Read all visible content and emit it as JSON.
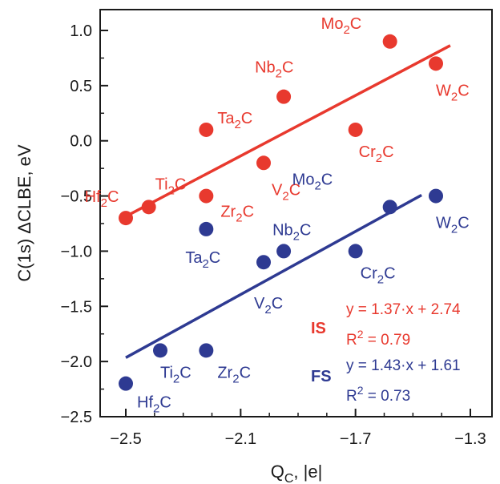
{
  "chart_data": {
    "type": "scatter",
    "xlabel": "Q",
    "xlabel_sub": "C",
    "xlabel_unit": ", |e|",
    "ylabel": "C(1s) ΔCLBE, eV",
    "xlim": [
      -2.6,
      -1.25
    ],
    "ylim": [
      -2.5,
      1.25
    ],
    "x_ticks": [
      -2.5,
      -2.1,
      -1.7,
      -1.3
    ],
    "x_tick_labels": [
      "−2.5",
      "−2.1",
      "−1.7",
      "−1.3"
    ],
    "y_ticks": [
      -2.5,
      -2.0,
      -1.5,
      -1.0,
      -0.5,
      0.0,
      0.5,
      1.0
    ],
    "y_tick_labels": [
      "−2.5",
      "−2.0",
      "−1.5",
      "−1.0",
      "−0.5",
      "0.0",
      "0.5",
      "1.0"
    ],
    "grid": false,
    "series": [
      {
        "name": "IS",
        "color": "#e8392e",
        "points": [
          {
            "label": "Hf",
            "sub": "2",
            "tail": "C",
            "x": -2.5,
            "y": -0.7
          },
          {
            "label": "Ti",
            "sub": "2",
            "tail": "C",
            "x": -2.42,
            "y": -0.6
          },
          {
            "label": "Zr",
            "sub": "2",
            "tail": "C",
            "x": -2.22,
            "y": -0.5
          },
          {
            "label": "Ta",
            "sub": "2",
            "tail": "C",
            "x": -2.22,
            "y": 0.1
          },
          {
            "label": "V",
            "sub": "2",
            "tail": "C",
            "x": -2.02,
            "y": -0.2
          },
          {
            "label": "Nb",
            "sub": "2",
            "tail": "C",
            "x": -1.95,
            "y": 0.4
          },
          {
            "label": "Cr",
            "sub": "2",
            "tail": "C",
            "x": -1.7,
            "y": 0.1
          },
          {
            "label": "Mo",
            "sub": "2",
            "tail": "C",
            "x": -1.58,
            "y": 0.9
          },
          {
            "label": "W",
            "sub": "2",
            "tail": "C",
            "x": -1.42,
            "y": 0.7
          }
        ],
        "fit": {
          "slope": 1.37,
          "intercept": 2.74,
          "r2": 0.79,
          "x_range": [
            -2.5,
            -1.37
          ]
        },
        "equation": "y = 1.37·x + 2.74",
        "r2_text": "R",
        "r2_sup": "2",
        "r2_value": " = 0.79"
      },
      {
        "name": "FS",
        "color": "#2e3a92",
        "points": [
          {
            "label": "Hf",
            "sub": "2",
            "tail": "C",
            "x": -2.5,
            "y": -2.2
          },
          {
            "label": "Ti",
            "sub": "2",
            "tail": "C",
            "x": -2.38,
            "y": -1.9
          },
          {
            "label": "Zr",
            "sub": "2",
            "tail": "C",
            "x": -2.22,
            "y": -1.9
          },
          {
            "label": "Ta",
            "sub": "2",
            "tail": "C",
            "x": -2.22,
            "y": -0.8
          },
          {
            "label": "V",
            "sub": "2",
            "tail": "C",
            "x": -2.02,
            "y": -1.1
          },
          {
            "label": "Nb",
            "sub": "2",
            "tail": "C",
            "x": -1.95,
            "y": -1.0
          },
          {
            "label": "Cr",
            "sub": "2",
            "tail": "C",
            "x": -1.7,
            "y": -1.0
          },
          {
            "label": "Mo",
            "sub": "2",
            "tail": "C",
            "x": -1.58,
            "y": -0.6
          },
          {
            "label": "W",
            "sub": "2",
            "tail": "C",
            "x": -1.42,
            "y": -0.5
          }
        ],
        "fit": {
          "slope": 1.43,
          "intercept": 1.61,
          "r2": 0.73,
          "x_range": [
            -2.5,
            -1.47
          ]
        },
        "equation": "y = 1.43·x + 1.61",
        "r2_text": "R",
        "r2_sup": "2",
        "r2_value": " = 0.73"
      }
    ]
  }
}
